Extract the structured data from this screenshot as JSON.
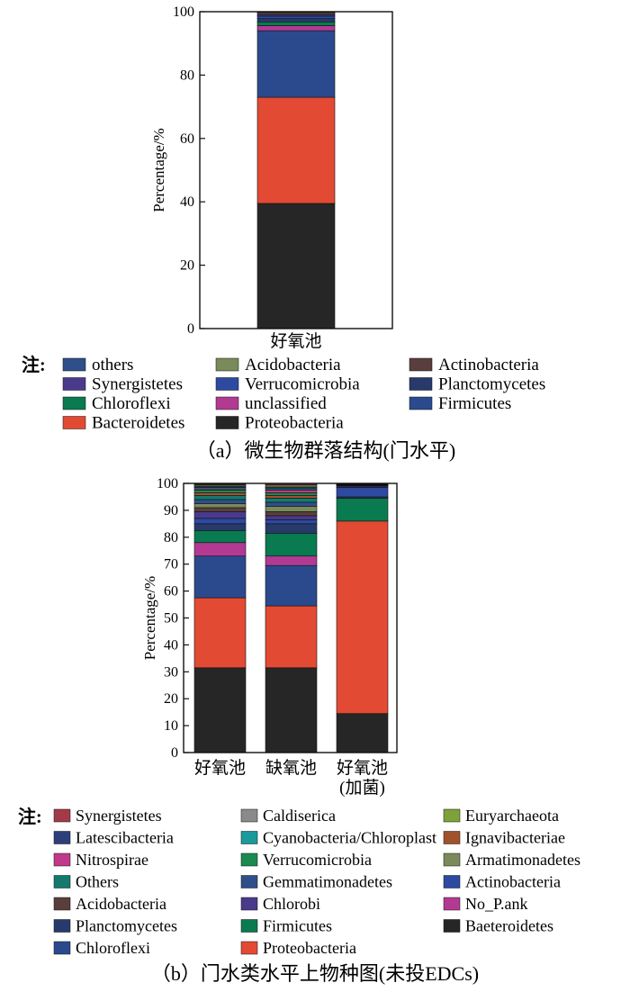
{
  "chart_data": [
    {
      "type": "bar",
      "stacked": true,
      "categories": [
        "好氧池"
      ],
      "ylabel": "Percentage/%",
      "ylim": [
        0,
        100
      ],
      "yticks": [
        0,
        20,
        40,
        60,
        80,
        100
      ],
      "caption": "（a）微生物群落结构(门水平)",
      "legend_prefix": "注:",
      "legend_placement": "below",
      "legend_order": [
        "others",
        "Acidobacteria",
        "Actinobacteria",
        "Synergistetes",
        "Verrucomicrobia",
        "Planctomycetes",
        "Chloroflexi",
        "unclassified",
        "Firmicutes",
        "Bacteroidetes",
        "Proteobacteria"
      ],
      "series": [
        {
          "name": "Proteobacteria",
          "color": "#262626",
          "values": [
            39.5
          ]
        },
        {
          "name": "Bacteroidetes",
          "color": "#e34a33",
          "values": [
            33.5
          ]
        },
        {
          "name": "Firmicutes",
          "color": "#2b4a8e",
          "values": [
            21.0
          ]
        },
        {
          "name": "unclassified",
          "color": "#b23a93",
          "values": [
            1.6
          ]
        },
        {
          "name": "Chloroflexi",
          "color": "#0a7a50",
          "values": [
            1.2
          ]
        },
        {
          "name": "Planctomycetes",
          "color": "#283a6b",
          "values": [
            1.0
          ]
        },
        {
          "name": "Verrucomicrobia",
          "color": "#2d4aa0",
          "values": [
            0.8
          ]
        },
        {
          "name": "Synergistetes",
          "color": "#4a3a8c",
          "values": [
            0.5
          ]
        },
        {
          "name": "Actinobacteria",
          "color": "#5a3e3e",
          "values": [
            0.4
          ]
        },
        {
          "name": "Acidobacteria",
          "color": "#7a8a5a",
          "values": [
            0.3
          ]
        },
        {
          "name": "others",
          "color": "#2f4f8a",
          "values": [
            0.2
          ]
        }
      ]
    },
    {
      "type": "bar",
      "stacked": true,
      "categories": [
        "好氧池",
        "缺氧池",
        "好氧池\n(加菌)"
      ],
      "ylabel": "Percentage/%",
      "ylim": [
        0,
        100
      ],
      "yticks": [
        0,
        10,
        20,
        30,
        40,
        50,
        60,
        70,
        80,
        90,
        100
      ],
      "caption": "（b）门水类水平上物种图(未投EDCs)",
      "legend_prefix": "注:",
      "legend_placement": "below",
      "legend_order": [
        "Synergistetes",
        "Caldiserica",
        "Euryarchaeota",
        "Latescibacteria",
        "Cyanobacteria/Chloroplast",
        "Ignavibacteriae",
        "Nitrospirae",
        "Verrucomicrobia",
        "Armatimonadetes",
        "Others",
        "Gemmatimonadetes",
        "Actinobacteria",
        "Acidobacteria",
        "Chlorobi",
        "No_P.ank",
        "Planctomycetes",
        "Firmicutes",
        "Baeteroidetes",
        "Chloroflexi",
        "Proteobacteria"
      ],
      "series": [
        {
          "name": "Baeteroidetes",
          "color": "#262626",
          "values": [
            31.5,
            31.5,
            14.5
          ]
        },
        {
          "name": "Proteobacteria",
          "color": "#e34a33",
          "values": [
            26.0,
            23.0,
            71.5
          ]
        },
        {
          "name": "Chloroflexi",
          "color": "#2b4a8e",
          "values": [
            15.5,
            15.0,
            0
          ]
        },
        {
          "name": "No_P.ank",
          "color": "#b23a93",
          "values": [
            5.0,
            3.5,
            0
          ]
        },
        {
          "name": "Firmicutes",
          "color": "#0a7a50",
          "values": [
            4.5,
            8.5,
            8.5
          ]
        },
        {
          "name": "Planctomycetes",
          "color": "#283a6b",
          "values": [
            2.5,
            3.5,
            0.5
          ]
        },
        {
          "name": "Actinobacteria",
          "color": "#2d4aa0",
          "values": [
            2.0,
            1.5,
            3.5
          ]
        },
        {
          "name": "Chlorobi",
          "color": "#4a3a8c",
          "values": [
            2.5,
            1.5,
            0.5
          ]
        },
        {
          "name": "Acidobacteria",
          "color": "#5a3e3e",
          "values": [
            1.5,
            1.5,
            0.2
          ]
        },
        {
          "name": "Armatimonadetes",
          "color": "#7a8a5a",
          "values": [
            1.5,
            2.0,
            0.2
          ]
        },
        {
          "name": "Gemmatimonadetes",
          "color": "#2f4f8a",
          "values": [
            1.5,
            1.5,
            0.1
          ]
        },
        {
          "name": "Others",
          "color": "#147a6e",
          "values": [
            1.5,
            1.5,
            0.1
          ]
        },
        {
          "name": "Ignavibacteriae",
          "color": "#a0522d",
          "values": [
            1.0,
            1.0,
            0.1
          ]
        },
        {
          "name": "Verrucomicrobia",
          "color": "#1a8a50",
          "values": [
            1.0,
            1.0,
            0.1
          ]
        },
        {
          "name": "Nitrospirae",
          "color": "#c0398a",
          "values": [
            0.5,
            1.0,
            0
          ]
        },
        {
          "name": "Cyanobacteria/Chloroplast",
          "color": "#1a9a9a",
          "values": [
            0.5,
            0.5,
            0
          ]
        },
        {
          "name": "Latescibacteria",
          "color": "#2c3f7a",
          "values": [
            0.5,
            0.5,
            0
          ]
        },
        {
          "name": "Euryarchaeota",
          "color": "#7ea23a",
          "values": [
            0.4,
            0.5,
            0
          ]
        },
        {
          "name": "Caldiserica",
          "color": "#8a8a8a",
          "values": [
            0.3,
            0.5,
            0
          ]
        },
        {
          "name": "Synergistetes",
          "color": "#a33a4a",
          "values": [
            0.3,
            0.5,
            0
          ]
        }
      ]
    }
  ]
}
